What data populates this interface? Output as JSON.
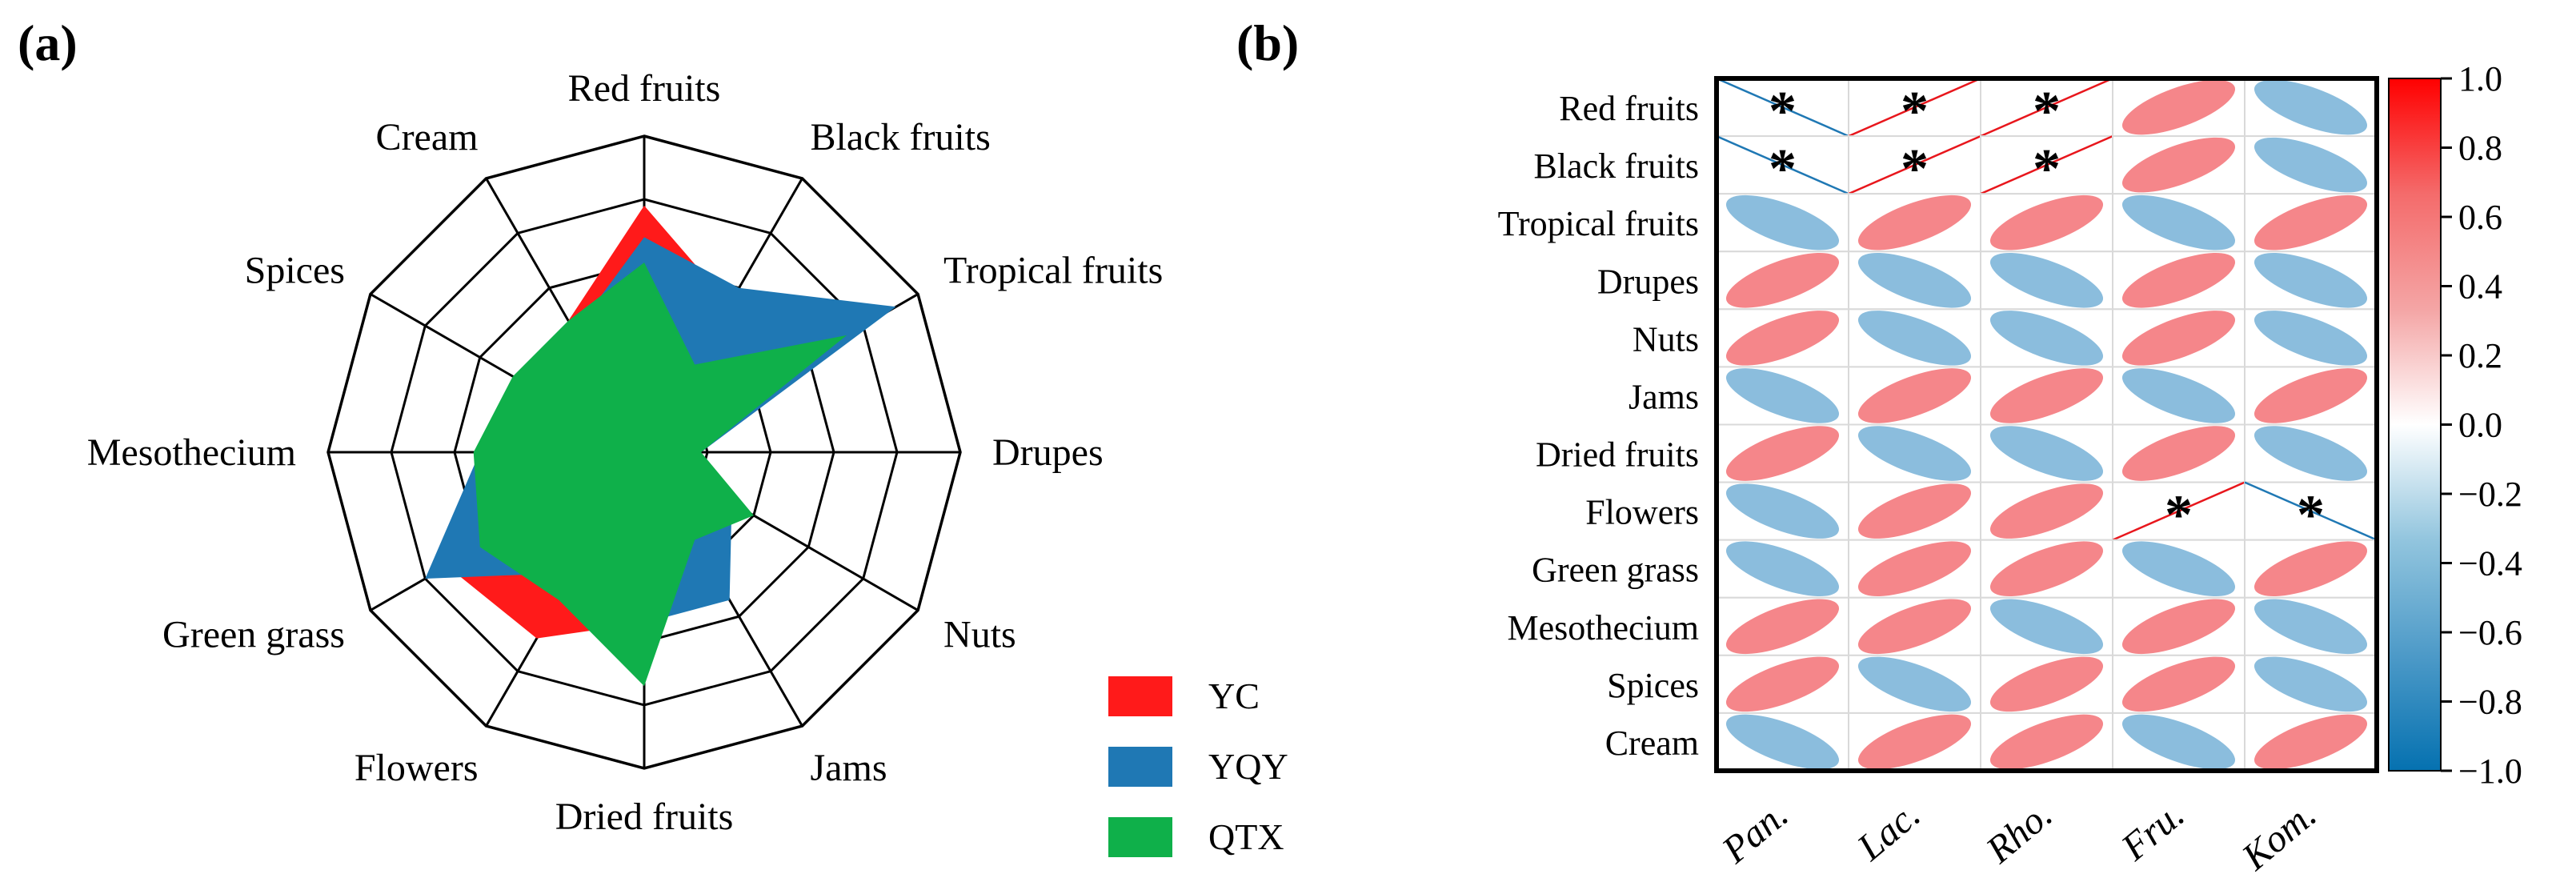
{
  "panel_labels": [
    "(a)",
    "(b)"
  ],
  "chart_data": [
    {
      "type": "radar",
      "panel": "(a)",
      "axes": [
        "Red fruits",
        "Black fruits",
        "Tropical fruits",
        "Drupes",
        "Nuts",
        "Jams",
        "Dried fruits",
        "Flowers",
        "Green grass",
        "Mesothecium",
        "Spices",
        "Cream"
      ],
      "range": [
        0,
        5
      ],
      "rings": 5,
      "series": [
        {
          "name": "YC",
          "color": "#ff1a1a",
          "values": [
            3.9,
            2.7,
            3.7,
            0.9,
            1.6,
            1.8,
            2.7,
            3.4,
            3.6,
            2.6,
            2.2,
            2.4
          ]
        },
        {
          "name": "YQY",
          "color": "#1f78b4",
          "values": [
            3.4,
            3.0,
            4.6,
            0.9,
            1.6,
            2.7,
            2.7,
            2.2,
            4.0,
            2.6,
            2.0,
            2.2
          ]
        },
        {
          "name": "QTX",
          "color": "#0fb04a",
          "values": [
            3.0,
            1.6,
            3.7,
            0.9,
            2.0,
            1.6,
            3.7,
            2.7,
            3.0,
            2.7,
            2.4,
            2.4
          ]
        }
      ],
      "legend": [
        "YC",
        "YQY",
        "QTX"
      ]
    },
    {
      "type": "heatmap",
      "panel": "(b)",
      "rows": [
        "Red fruits",
        "Black fruits",
        "Tropical fruits",
        "Drupes",
        "Nuts",
        "Jams",
        "Dried fruits",
        "Flowers",
        "Green grass",
        "Mesothecium",
        "Spices",
        "Cream"
      ],
      "columns": [
        "Pan.",
        "Lac.",
        "Rho.",
        "Fru.",
        "Kom."
      ],
      "values": [
        [
          -0.98,
          0.98,
          0.98,
          0.6,
          -0.6
        ],
        [
          -0.98,
          0.98,
          0.98,
          0.6,
          -0.6
        ],
        [
          -0.6,
          0.6,
          0.6,
          -0.6,
          0.6
        ],
        [
          0.6,
          -0.6,
          -0.6,
          0.6,
          -0.6
        ],
        [
          0.6,
          -0.6,
          -0.6,
          0.6,
          -0.6
        ],
        [
          -0.6,
          0.6,
          0.6,
          -0.6,
          0.6
        ],
        [
          0.6,
          -0.6,
          -0.6,
          0.6,
          -0.6
        ],
        [
          -0.6,
          0.6,
          0.6,
          0.98,
          -0.98
        ],
        [
          -0.6,
          0.6,
          0.6,
          -0.6,
          0.6
        ],
        [
          0.6,
          0.6,
          -0.6,
          0.6,
          -0.6
        ],
        [
          0.6,
          -0.6,
          0.6,
          0.6,
          -0.6
        ],
        [
          -0.6,
          0.6,
          0.6,
          -0.6,
          0.6
        ]
      ],
      "significance": [
        [
          true,
          true,
          true,
          false,
          false
        ],
        [
          true,
          true,
          true,
          false,
          false
        ],
        [
          false,
          false,
          false,
          false,
          false
        ],
        [
          false,
          false,
          false,
          false,
          false
        ],
        [
          false,
          false,
          false,
          false,
          false
        ],
        [
          false,
          false,
          false,
          false,
          false
        ],
        [
          false,
          false,
          false,
          false,
          false
        ],
        [
          false,
          false,
          false,
          true,
          true
        ],
        [
          false,
          false,
          false,
          false,
          false
        ],
        [
          false,
          false,
          false,
          false,
          false
        ],
        [
          false,
          false,
          false,
          false,
          false
        ],
        [
          false,
          false,
          false,
          false,
          false
        ]
      ],
      "marker": "*",
      "colorbar": {
        "min": -1.0,
        "max": 1.0,
        "ticks": [
          "1.0",
          "0.8",
          "0.6",
          "0.4",
          "0.2",
          "0.0",
          "−0.2",
          "−0.4",
          "−0.6",
          "−0.8",
          "−1.0"
        ],
        "colors": [
          "#0571b0",
          "#4d9ac8",
          "#92c5de",
          "#ffffff",
          "#f4a5a5",
          "#f46b6b",
          "#ff0000"
        ]
      }
    }
  ]
}
